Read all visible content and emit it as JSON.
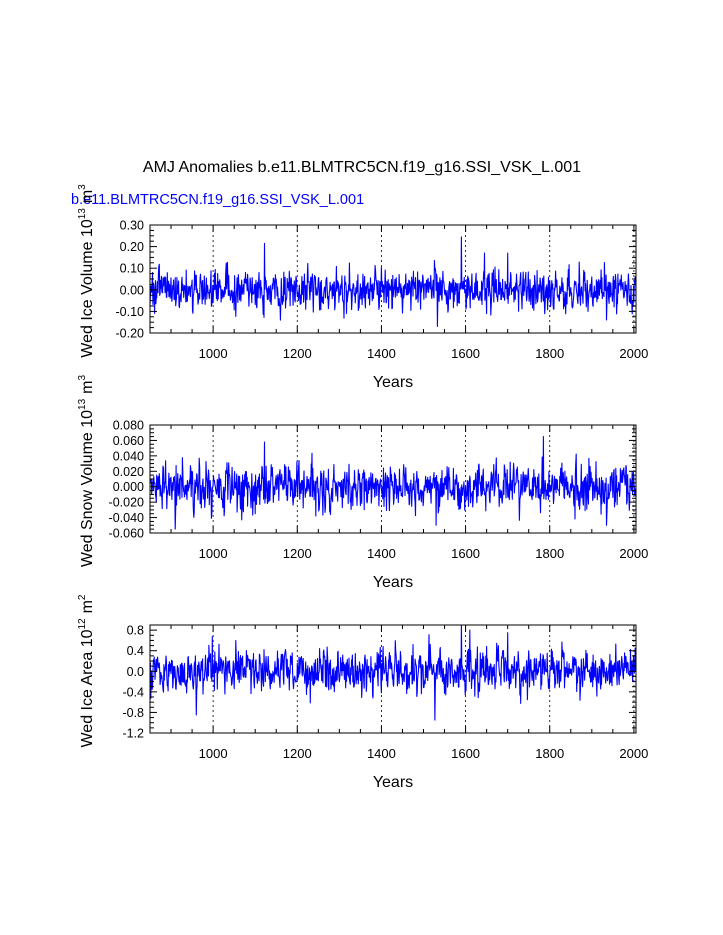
{
  "main_title": "AMJ Anomalies b.e11.BLMTRC5CN.f19_g16.SSI_VSK_L.001",
  "case_label": "b.e11.BLMTRC5CN.f19_g16.SSI_VSK_L.001",
  "colors": {
    "series": "#0000ff",
    "axes": "#000000",
    "grid": "#000000",
    "case_label": "#0000ff"
  },
  "chart_data": [
    {
      "type": "line",
      "title": "",
      "xlabel": "Years",
      "ylabel": {
        "prefix": "Wed Ice Volume 10",
        "exp": "13",
        "unit": "m",
        "unit_exp": "3"
      },
      "xlim": [
        850,
        2005
      ],
      "ylim": [
        -0.2,
        0.3
      ],
      "xticks": [
        1000,
        1200,
        1400,
        1600,
        1800,
        2000
      ],
      "xtick_labels": [
        "1000",
        "1200",
        "1400",
        "1600",
        "1800",
        "2000"
      ],
      "yticks": [
        -0.2,
        -0.1,
        0.0,
        0.1,
        0.2,
        0.3
      ],
      "ytick_labels": [
        "-0.20",
        "-0.10",
        "0.00",
        "0.10",
        "0.20",
        "0.30"
      ],
      "grid": "vertical dashed at major x ticks",
      "series": [
        {
          "x_start": 850,
          "x_end": 2005,
          "amplitude": 0.045,
          "min": -0.17,
          "max": 0.245,
          "peaks": [
            {
              "x": 1122,
              "y": 0.215
            },
            {
              "x": 1590,
              "y": 0.245
            },
            {
              "x": 1533,
              "y": -0.17
            },
            {
              "x": 1935,
              "y": -0.14
            },
            {
              "x": 1645,
              "y": 0.17
            },
            {
              "x": 1700,
              "y": 0.17
            }
          ]
        }
      ]
    },
    {
      "type": "line",
      "title": "",
      "xlabel": "Years",
      "ylabel": {
        "prefix": "Wed Snow Volume 10",
        "exp": "13",
        "unit": "m",
        "unit_exp": "3"
      },
      "xlim": [
        850,
        2005
      ],
      "ylim": [
        -0.06,
        0.08
      ],
      "xticks": [
        1000,
        1200,
        1400,
        1600,
        1800,
        2000
      ],
      "xtick_labels": [
        "1000",
        "1200",
        "1400",
        "1600",
        "1800",
        "2000"
      ],
      "yticks": [
        -0.06,
        -0.04,
        -0.02,
        0.0,
        0.02,
        0.04,
        0.06,
        0.08
      ],
      "ytick_labels": [
        "-0.060",
        "-0.040",
        "-0.020",
        "0.000",
        "0.020",
        "0.040",
        "0.060",
        "0.080"
      ],
      "grid": "vertical dashed at major x ticks",
      "series": [
        {
          "x_start": 850,
          "x_end": 2005,
          "amplitude": 0.014,
          "min": -0.058,
          "max": 0.065,
          "peaks": [
            {
              "x": 1122,
              "y": 0.058
            },
            {
              "x": 1785,
              "y": 0.065
            },
            {
              "x": 1530,
              "y": -0.05
            },
            {
              "x": 1935,
              "y": -0.05
            },
            {
              "x": 910,
              "y": -0.055
            }
          ]
        }
      ]
    },
    {
      "type": "line",
      "title": "",
      "xlabel": "Years",
      "ylabel": {
        "prefix": "Wed Ice Area 10",
        "exp": "12",
        "unit": "m",
        "unit_exp": "2"
      },
      "xlim": [
        850,
        2005
      ],
      "ylim": [
        -1.2,
        0.9
      ],
      "xticks": [
        1000,
        1200,
        1400,
        1600,
        1800,
        2000
      ],
      "xtick_labels": [
        "1000",
        "1200",
        "1400",
        "1600",
        "1800",
        "2000"
      ],
      "yticks": [
        -1.2,
        -0.8,
        -0.4,
        0.0,
        0.4,
        0.8
      ],
      "ytick_labels": [
        "-1.2",
        "-0.8",
        "-0.4",
        "0.0",
        "0.4",
        "0.8"
      ],
      "grid": "vertical dashed at major x ticks",
      "series": [
        {
          "x_start": 850,
          "x_end": 2005,
          "amplitude": 0.2,
          "min": -0.95,
          "max": 0.9,
          "peaks": [
            {
              "x": 1590,
              "y": 0.9
            },
            {
              "x": 1527,
              "y": -0.95
            },
            {
              "x": 960,
              "y": -0.85
            },
            {
              "x": 1610,
              "y": 0.8
            },
            {
              "x": 1700,
              "y": 0.75
            }
          ]
        }
      ]
    }
  ]
}
